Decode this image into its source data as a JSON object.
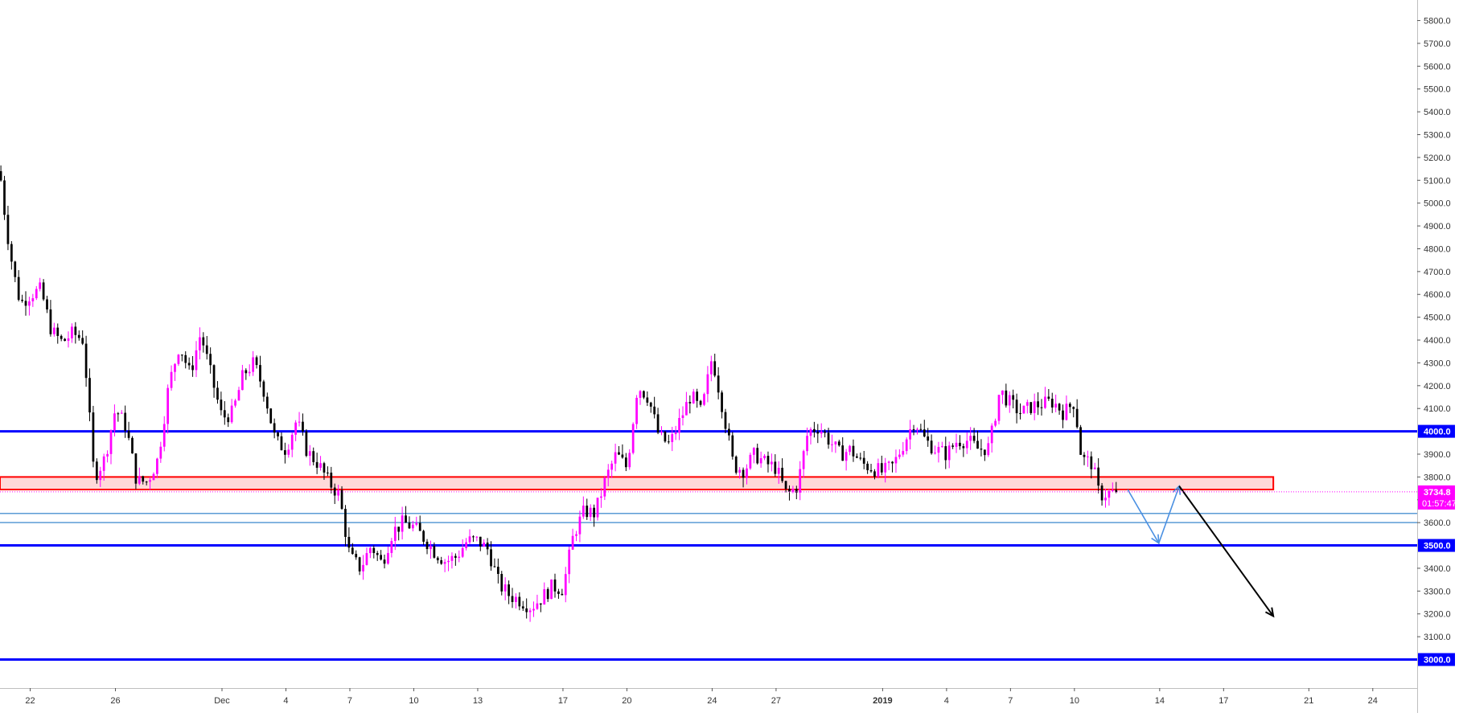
{
  "chart_data": {
    "type": "candlestick",
    "title": "",
    "xlabel": "",
    "ylabel": "",
    "ylim": [
      2875,
      5890
    ],
    "y_ticks": [
      3100,
      3200,
      3300,
      3400,
      3600,
      3700,
      3800,
      3900,
      4100,
      4200,
      4300,
      4400,
      4500,
      4600,
      4700,
      4800,
      4900,
      5000,
      5100,
      5200,
      5300,
      5400,
      5500,
      5600,
      5700,
      5800
    ],
    "y_tick_decimals": 1,
    "x_ticks": [
      {
        "label": "22",
        "date": "2018-11-22"
      },
      {
        "label": "26",
        "date": "2018-11-26"
      },
      {
        "label": "Dec",
        "date": "2018-12-01"
      },
      {
        "label": "4",
        "date": "2018-12-04"
      },
      {
        "label": "7",
        "date": "2018-12-07"
      },
      {
        "label": "10",
        "date": "2018-12-10"
      },
      {
        "label": "13",
        "date": "2018-12-13"
      },
      {
        "label": "17",
        "date": "2018-12-17"
      },
      {
        "label": "20",
        "date": "2018-12-20"
      },
      {
        "label": "24",
        "date": "2018-12-24"
      },
      {
        "label": "27",
        "date": "2018-12-27"
      },
      {
        "label": "2019",
        "date": "2019-01-01",
        "bold": true
      },
      {
        "label": "4",
        "date": "2019-01-04"
      },
      {
        "label": "7",
        "date": "2019-01-07"
      },
      {
        "label": "10",
        "date": "2019-01-10"
      },
      {
        "label": "14",
        "date": "2019-01-14"
      },
      {
        "label": "17",
        "date": "2019-01-17"
      },
      {
        "label": "21",
        "date": "2019-01-21"
      },
      {
        "label": "24",
        "date": "2019-01-24"
      }
    ],
    "x_range": [
      "2018-11-20T14:00",
      "2019-01-26T02:00"
    ],
    "candle_hours": 4,
    "up_color": "#ff00ff",
    "down_color": "#000000",
    "close_path": [
      [
        "2018-11-20T15:00",
        5100
      ],
      [
        "2018-11-20T21:00",
        4900
      ],
      [
        "2018-11-21T05:00",
        4700
      ],
      [
        "2018-11-21T13:00",
        4560
      ],
      [
        "2018-11-22T00:00",
        4600
      ],
      [
        "2018-11-22T12:00",
        4620
      ],
      [
        "2018-11-23T00:00",
        4440
      ],
      [
        "2018-11-23T12:00",
        4390
      ],
      [
        "2018-11-24T00:00",
        4430
      ],
      [
        "2018-11-24T12:00",
        4400
      ],
      [
        "2018-11-25T00:00",
        3800
      ],
      [
        "2018-11-25T12:00",
        3880
      ],
      [
        "2018-11-26T00:00",
        4100
      ],
      [
        "2018-11-26T12:00",
        4020
      ],
      [
        "2018-11-27T00:00",
        3780
      ],
      [
        "2018-11-27T12:00",
        3780
      ],
      [
        "2018-11-28T00:00",
        3880
      ],
      [
        "2018-11-28T12:00",
        4200
      ],
      [
        "2018-11-29T00:00",
        4380
      ],
      [
        "2018-11-29T12:00",
        4250
      ],
      [
        "2018-11-30T00:00",
        4430
      ],
      [
        "2018-11-30T12:00",
        4240
      ],
      [
        "2018-12-01T00:00",
        4060
      ],
      [
        "2018-12-01T12:00",
        4080
      ],
      [
        "2018-12-02T00:00",
        4250
      ],
      [
        "2018-12-02T12:00",
        4300
      ],
      [
        "2018-12-03T00:00",
        4170
      ],
      [
        "2018-12-03T12:00",
        3960
      ],
      [
        "2018-12-04T00:00",
        3920
      ],
      [
        "2018-12-04T12:00",
        4050
      ],
      [
        "2018-12-05T00:00",
        3910
      ],
      [
        "2018-12-05T12:00",
        3860
      ],
      [
        "2018-12-06T00:00",
        3780
      ],
      [
        "2018-12-06T12:00",
        3720
      ],
      [
        "2018-12-07T00:00",
        3450
      ],
      [
        "2018-12-07T12:00",
        3400
      ],
      [
        "2018-12-08T00:00",
        3500
      ],
      [
        "2018-12-08T12:00",
        3420
      ],
      [
        "2018-12-09T00:00",
        3560
      ],
      [
        "2018-12-09T12:00",
        3600
      ],
      [
        "2018-12-10T00:00",
        3580
      ],
      [
        "2018-12-10T12:00",
        3530
      ],
      [
        "2018-12-11T00:00",
        3470
      ],
      [
        "2018-12-11T12:00",
        3430
      ],
      [
        "2018-12-12T00:00",
        3450
      ],
      [
        "2018-12-12T12:00",
        3520
      ],
      [
        "2018-12-13T00:00",
        3520
      ],
      [
        "2018-12-13T12:00",
        3480
      ],
      [
        "2018-12-14T00:00",
        3330
      ],
      [
        "2018-12-14T12:00",
        3280
      ],
      [
        "2018-12-15T00:00",
        3260
      ],
      [
        "2018-12-15T12:00",
        3230
      ],
      [
        "2018-12-16T00:00",
        3270
      ],
      [
        "2018-12-16T12:00",
        3320
      ],
      [
        "2018-12-17T00:00",
        3310
      ],
      [
        "2018-12-17T12:00",
        3550
      ],
      [
        "2018-12-18T00:00",
        3650
      ],
      [
        "2018-12-18T12:00",
        3640
      ],
      [
        "2018-12-19T00:00",
        3790
      ],
      [
        "2018-12-19T12:00",
        3900
      ],
      [
        "2018-12-20T00:00",
        3840
      ],
      [
        "2018-12-20T12:00",
        4200
      ],
      [
        "2018-12-21T00:00",
        4150
      ],
      [
        "2018-12-21T12:00",
        3980
      ],
      [
        "2018-12-22T00:00",
        3940
      ],
      [
        "2018-12-22T12:00",
        4050
      ],
      [
        "2018-12-23T00:00",
        4160
      ],
      [
        "2018-12-23T12:00",
        4080
      ],
      [
        "2018-12-24T00:00",
        4330
      ],
      [
        "2018-12-24T12:00",
        4100
      ],
      [
        "2018-12-25T00:00",
        3850
      ],
      [
        "2018-12-25T12:00",
        3830
      ],
      [
        "2018-12-26T00:00",
        3900
      ],
      [
        "2018-12-26T12:00",
        3860
      ],
      [
        "2018-12-27T00:00",
        3840
      ],
      [
        "2018-12-27T12:00",
        3720
      ],
      [
        "2018-12-28T00:00",
        3760
      ],
      [
        "2018-12-28T12:00",
        4000
      ],
      [
        "2018-12-29T00:00",
        4020
      ],
      [
        "2018-12-29T12:00",
        3960
      ],
      [
        "2018-12-30T00:00",
        3900
      ],
      [
        "2018-12-30T12:00",
        3920
      ],
      [
        "2018-12-31T00:00",
        3860
      ],
      [
        "2018-12-31T12:00",
        3840
      ],
      [
        "2019-01-01T00:00",
        3820
      ],
      [
        "2019-01-01T12:00",
        3850
      ],
      [
        "2019-01-02T00:00",
        3950
      ],
      [
        "2019-01-02T12:00",
        4050
      ],
      [
        "2019-01-03T00:00",
        3960
      ],
      [
        "2019-01-03T12:00",
        3920
      ],
      [
        "2019-01-04T00:00",
        3900
      ],
      [
        "2019-01-04T12:00",
        3960
      ],
      [
        "2019-01-05T00:00",
        3960
      ],
      [
        "2019-01-05T12:00",
        3920
      ],
      [
        "2019-01-06T00:00",
        3930
      ],
      [
        "2019-01-06T12:00",
        4180
      ],
      [
        "2019-01-07T00:00",
        4120
      ],
      [
        "2019-01-07T12:00",
        4080
      ],
      [
        "2019-01-08T00:00",
        4110
      ],
      [
        "2019-01-08T12:00",
        4120
      ],
      [
        "2019-01-09T00:00",
        4130
      ],
      [
        "2019-01-09T12:00",
        4080
      ],
      [
        "2019-01-10T00:00",
        4130
      ],
      [
        "2019-01-10T08:00",
        3880
      ],
      [
        "2019-01-10T20:00",
        3860
      ],
      [
        "2019-01-11T04:00",
        3720
      ],
      [
        "2019-01-11T16:00",
        3730
      ],
      [
        "2019-01-12T00:00",
        3734.8
      ]
    ],
    "price_line": {
      "value": 3734.8,
      "label": "3734.8",
      "countdown": "01:57:47",
      "color": "#ff00ff"
    },
    "horizontal_levels": [
      {
        "value": 4000,
        "label": "4000.0",
        "color": "#0000ff",
        "width": "thick"
      },
      {
        "value": 3500,
        "label": "3500.0",
        "color": "#0000ff",
        "width": "thick"
      },
      {
        "value": 3000,
        "label": "3000.0",
        "color": "#0000ff",
        "width": "thick"
      },
      {
        "value": 3640,
        "color": "#5b9bd5",
        "width": "thin"
      },
      {
        "value": 3600,
        "color": "#5b9bd5",
        "width": "thin"
      }
    ],
    "zones": [
      {
        "from": 3745,
        "to": 3800,
        "start": "2018-11-20T14:00",
        "end": "2019-01-19T08:00",
        "fill": "rgba(255,0,0,0.15)",
        "stroke": "#ff0000"
      }
    ],
    "projections": [
      {
        "color": "#4a90e2",
        "points": [
          [
            "2019-01-12T12:00",
            3745
          ],
          [
            "2019-01-13T23:00",
            3510
          ],
          [
            "2019-01-14T22:00",
            3760
          ]
        ]
      },
      {
        "color": "#000000",
        "points": [
          [
            "2019-01-14T22:00",
            3760
          ],
          [
            "2019-01-19T08:00",
            3190
          ]
        ]
      }
    ]
  }
}
